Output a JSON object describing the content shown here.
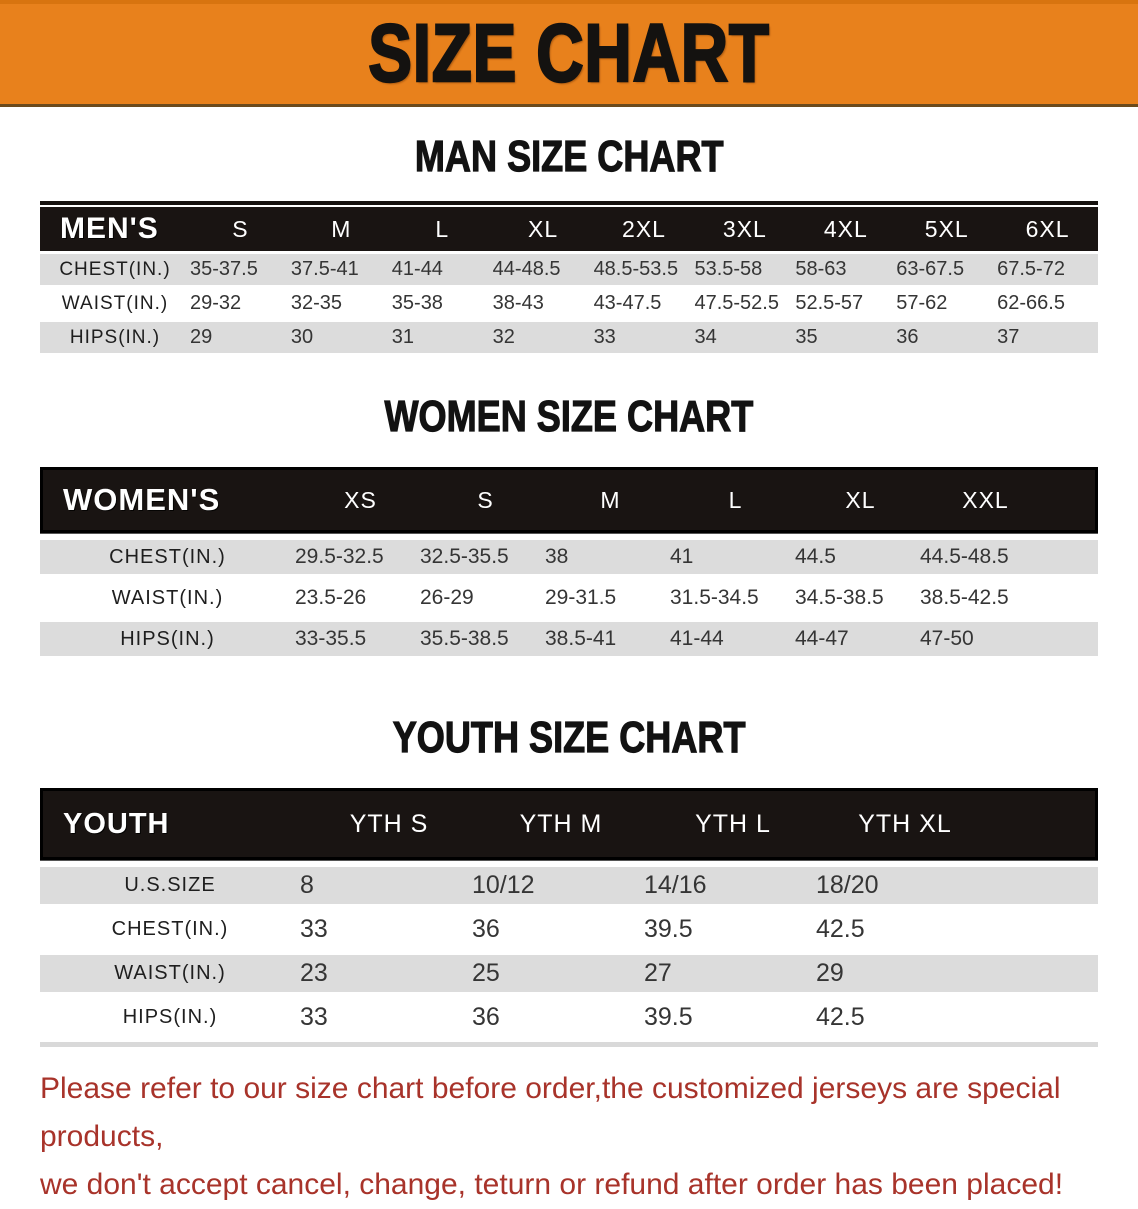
{
  "banner": {
    "title": "SIZE CHART"
  },
  "colors": {
    "banner_orange": "#E8811C",
    "table_header_black": "#191412",
    "row_stripe_gray": "#DCDCDC",
    "footer_red": "#A8332A"
  },
  "sections": {
    "men": {
      "heading": "MAN SIZE CHART",
      "label": "MEN'S",
      "columns": [
        "S",
        "M",
        "L",
        "XL",
        "2XL",
        "3XL",
        "4XL",
        "5XL",
        "6XL"
      ],
      "rows": [
        {
          "label": "CHEST(IN.)",
          "values": [
            "35-37.5",
            "37.5-41",
            "41-44",
            "44-48.5",
            "48.5-53.5",
            "53.5-58",
            "58-63",
            "63-67.5",
            "67.5-72"
          ]
        },
        {
          "label": "WAIST(IN.)",
          "values": [
            "29-32",
            "32-35",
            "35-38",
            "38-43",
            "43-47.5",
            "47.5-52.5",
            "52.5-57",
            "57-62",
            "62-66.5"
          ]
        },
        {
          "label": "HIPS(IN.)",
          "values": [
            "29",
            "30",
            "31",
            "32",
            "33",
            "34",
            "35",
            "36",
            "37"
          ]
        }
      ]
    },
    "women": {
      "heading": "WOMEN SIZE CHART",
      "label": "WOMEN'S",
      "columns": [
        "XS",
        "S",
        "M",
        "L",
        "XL",
        "XXL"
      ],
      "rows": [
        {
          "label": "CHEST(IN.)",
          "values": [
            "29.5-32.5",
            "32.5-35.5",
            "38",
            "41",
            "44.5",
            "44.5-48.5"
          ]
        },
        {
          "label": "WAIST(IN.)",
          "values": [
            "23.5-26",
            "26-29",
            "29-31.5",
            "31.5-34.5",
            "34.5-38.5",
            "38.5-42.5"
          ]
        },
        {
          "label": "HIPS(IN.)",
          "values": [
            "33-35.5",
            "35.5-38.5",
            "38.5-41",
            "41-44",
            "44-47",
            "47-50"
          ]
        }
      ]
    },
    "youth": {
      "heading": "YOUTH SIZE CHART",
      "label": "YOUTH",
      "columns": [
        "YTH S",
        "YTH M",
        "YTH L",
        "YTH XL"
      ],
      "rows": [
        {
          "label": "U.S.SIZE",
          "values": [
            "8",
            "10/12",
            "14/16",
            "18/20"
          ]
        },
        {
          "label": "CHEST(IN.)",
          "values": [
            "33",
            "36",
            "39.5",
            "42.5"
          ]
        },
        {
          "label": "WAIST(IN.)",
          "values": [
            "23",
            "25",
            "27",
            "29"
          ]
        },
        {
          "label": "HIPS(IN.)",
          "values": [
            "33",
            "36",
            "39.5",
            "42.5"
          ]
        }
      ]
    }
  },
  "footer": {
    "line1": "Please refer to our size chart before order,the customized jerseys are special products,",
    "line2": "we don't accept cancel, change, teturn or refund after order has been placed!"
  }
}
